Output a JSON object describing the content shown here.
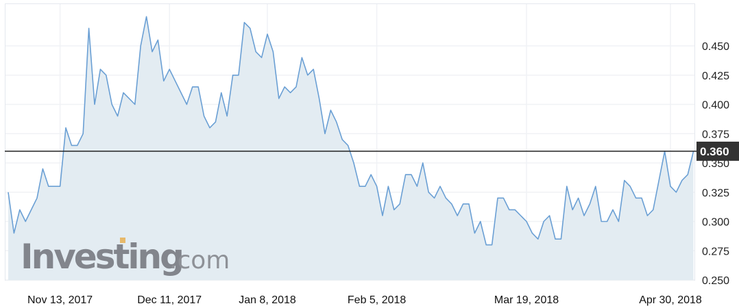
{
  "chart_data": {
    "type": "area",
    "title": "",
    "xlabel": "",
    "ylabel": "",
    "ylim": [
      0.25,
      0.475
    ],
    "y_ticks": [
      "0.450",
      "0.425",
      "0.400",
      "0.375",
      "0.350",
      "0.325",
      "0.300",
      "0.275",
      "0.250"
    ],
    "x_ticks": [
      "Nov 13, 2017",
      "Dec 11, 2017",
      "Jan 8, 2018",
      "Feb 5, 2018",
      "Mar 19, 2018",
      "Apr 30, 2018"
    ],
    "grid": true,
    "current_price": {
      "value": 0.36,
      "label": "0.360"
    },
    "colors": {
      "line": "#6a9fd4",
      "fill": "#e3ecf2",
      "price_line": "#222222",
      "price_box": "#333333"
    },
    "values": [
      0.325,
      0.29,
      0.31,
      0.3,
      0.31,
      0.32,
      0.345,
      0.33,
      0.33,
      0.33,
      0.38,
      0.365,
      0.365,
      0.375,
      0.465,
      0.4,
      0.43,
      0.425,
      0.4,
      0.39,
      0.41,
      0.405,
      0.4,
      0.45,
      0.475,
      0.445,
      0.455,
      0.42,
      0.43,
      0.42,
      0.41,
      0.4,
      0.415,
      0.415,
      0.39,
      0.38,
      0.385,
      0.41,
      0.39,
      0.425,
      0.425,
      0.47,
      0.465,
      0.445,
      0.44,
      0.46,
      0.445,
      0.405,
      0.415,
      0.41,
      0.415,
      0.44,
      0.425,
      0.43,
      0.405,
      0.375,
      0.395,
      0.385,
      0.37,
      0.365,
      0.35,
      0.33,
      0.33,
      0.34,
      0.33,
      0.305,
      0.33,
      0.31,
      0.315,
      0.34,
      0.34,
      0.33,
      0.35,
      0.325,
      0.32,
      0.33,
      0.32,
      0.315,
      0.305,
      0.315,
      0.315,
      0.29,
      0.3,
      0.28,
      0.28,
      0.32,
      0.32,
      0.31,
      0.31,
      0.305,
      0.3,
      0.29,
      0.285,
      0.3,
      0.305,
      0.285,
      0.285,
      0.33,
      0.31,
      0.32,
      0.305,
      0.315,
      0.33,
      0.3,
      0.3,
      0.31,
      0.3,
      0.335,
      0.33,
      0.32,
      0.32,
      0.305,
      0.31,
      0.335,
      0.36,
      0.33,
      0.325,
      0.335,
      0.34,
      0.36
    ]
  },
  "watermark": {
    "brand": "Investing",
    "suffix": ".com"
  }
}
